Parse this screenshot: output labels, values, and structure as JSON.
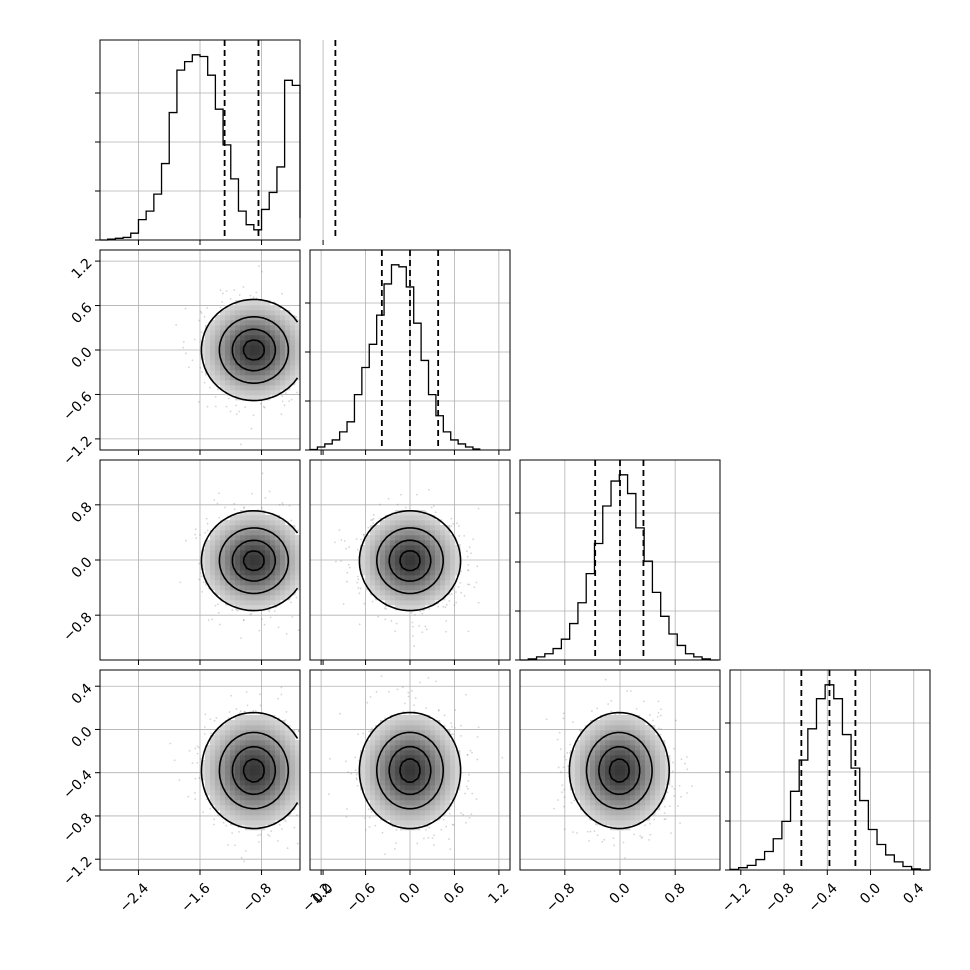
{
  "chart_data": {
    "type": "corner",
    "dimensions": 4,
    "grid": true,
    "parameters": [
      {
        "index": 0,
        "range": [
          -2.9,
          -0.3
        ],
        "ticks": [
          -2.4,
          -1.6,
          -0.8,
          0.0
        ],
        "tick_labels": [
          "−2.4",
          "−1.6",
          "−0.8",
          "0.0"
        ],
        "quantiles": [
          -1.28,
          -0.84,
          0.16
        ],
        "hist": {
          "bin_width": 0.1,
          "bin_start": -2.9,
          "counts": [
            0,
            0.5,
            1,
            1.5,
            4,
            12,
            17,
            27,
            45,
            75,
            100,
            105,
            109,
            108,
            97,
            77,
            56,
            36,
            17,
            9,
            6,
            18,
            28,
            43,
            94,
            91,
            13
          ]
        },
        "modes": [
          {
            "center": -0.9,
            "spread": 0.33,
            "weight": 0.82
          },
          {
            "center": 0.16,
            "spread": 0.14,
            "weight": 0.18
          }
        ]
      },
      {
        "index": 1,
        "range": [
          -1.35,
          1.35
        ],
        "ticks": [
          -1.2,
          -0.6,
          0.0,
          0.6,
          1.2
        ],
        "tick_labels": [
          "−1.2",
          "−0.6",
          "0.0",
          "0.6",
          "1.2"
        ],
        "quantiles": [
          -0.38,
          0.0,
          0.38
        ],
        "hist": {
          "bin_width": 0.1,
          "bin_start": -1.35,
          "counts": [
            0.5,
            3,
            6,
            10,
            18,
            28,
            55,
            82,
            105,
            134,
            165,
            184,
            182,
            162,
            126,
            89,
            55,
            34,
            18,
            10,
            6,
            3,
            1
          ]
        },
        "modes": [
          {
            "center": 0.0,
            "spread": 0.33,
            "weight": 1.0
          }
        ]
      },
      {
        "index": 2,
        "range": [
          -1.45,
          1.45
        ],
        "ticks": [
          -0.8,
          0.0,
          0.8
        ],
        "tick_labels": [
          "−0.8",
          "0.0",
          "0.8"
        ],
        "quantiles": [
          -0.36,
          0.0,
          0.34
        ],
        "hist": {
          "bin_width": 0.12,
          "bin_start": -1.45,
          "counts": [
            0,
            1,
            3,
            6,
            11,
            20,
            35,
            55,
            83,
            112,
            148,
            172,
            178,
            160,
            127,
            95,
            65,
            42,
            25,
            14,
            6,
            3,
            1,
            0
          ]
        },
        "modes": [
          {
            "center": -0.01,
            "spread": 0.35,
            "weight": 1.0
          }
        ]
      },
      {
        "index": 3,
        "range": [
          -1.3,
          0.55
        ],
        "ticks": [
          -1.2,
          -0.8,
          -0.4,
          0.0,
          0.4
        ],
        "tick_labels": [
          "−1.2",
          "−0.8",
          "−0.4",
          "0.0",
          "0.4"
        ],
        "quantiles": [
          -0.64,
          -0.38,
          -0.14
        ],
        "hist": {
          "bin_width": 0.08,
          "bin_start": -1.3,
          "counts": [
            0.5,
            2,
            4,
            9,
            16,
            27,
            42,
            68,
            95,
            122,
            148,
            160,
            148,
            117,
            88,
            60,
            35,
            22,
            13,
            7,
            3,
            1,
            0
          ]
        },
        "modes": [
          {
            "center": -0.38,
            "spread": 0.26,
            "weight": 1.0
          }
        ]
      }
    ],
    "pairs": [
      {
        "row": 1,
        "col": 0,
        "levels": [
          0.12,
          0.4,
          0.7,
          0.92
        ]
      },
      {
        "row": 2,
        "col": 0,
        "levels": [
          0.12,
          0.4,
          0.7,
          0.92
        ]
      },
      {
        "row": 3,
        "col": 0,
        "levels": [
          0.12,
          0.4,
          0.7,
          0.92
        ]
      },
      {
        "row": 2,
        "col": 1,
        "levels": [
          0.12,
          0.4,
          0.7,
          0.92
        ]
      },
      {
        "row": 3,
        "col": 1,
        "levels": [
          0.12,
          0.4,
          0.7,
          0.92
        ]
      },
      {
        "row": 3,
        "col": 2,
        "levels": [
          0.12,
          0.4,
          0.7,
          0.92
        ]
      }
    ]
  }
}
